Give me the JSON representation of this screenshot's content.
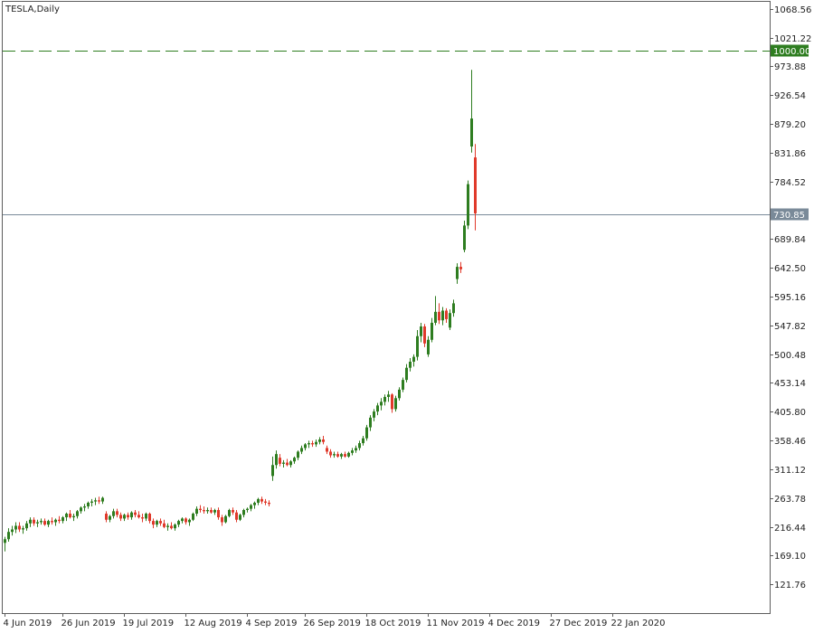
{
  "chart_data": {
    "type": "candlestick",
    "title": "TESLA,Daily",
    "ylim": [
      74.42,
      1080
    ],
    "y_ticks": [
      1068.56,
      1021.22,
      973.88,
      926.54,
      879.2,
      831.86,
      784.52,
      689.84,
      642.5,
      595.16,
      547.82,
      500.48,
      453.14,
      405.8,
      358.46,
      311.12,
      263.78,
      216.44,
      169.1,
      121.76
    ],
    "x_tick_labels": [
      "4 Jun 2019",
      "26 Jun 2019",
      "19 Jul 2019",
      "12 Aug 2019",
      "4 Sep 2019",
      "26 Sep 2019",
      "18 Oct 2019",
      "11 Nov 2019",
      "4 Dec 2019",
      "27 Dec 2019",
      "22 Jan 2020"
    ],
    "x_tick_indices": [
      0,
      16,
      33,
      50,
      67,
      83,
      100,
      117,
      134,
      151,
      168
    ],
    "colors": {
      "up": "#2e7d20",
      "down": "#e0392b",
      "wick": "#333333"
    },
    "levels": [
      {
        "label": "1000.00",
        "value": 1000.0,
        "style": "dashed",
        "color": "#2e7d20"
      },
      {
        "label": "730.85",
        "value": 730.85,
        "style": "solid",
        "color": "#7a8a99"
      }
    ],
    "candles": [
      {
        "o": 190,
        "h": 200,
        "l": 176,
        "c": 196
      },
      {
        "o": 196,
        "h": 214,
        "l": 192,
        "c": 208
      },
      {
        "o": 208,
        "h": 218,
        "l": 202,
        "c": 212
      },
      {
        "o": 212,
        "h": 224,
        "l": 206,
        "c": 218
      },
      {
        "o": 218,
        "h": 224,
        "l": 208,
        "c": 212
      },
      {
        "o": 212,
        "h": 218,
        "l": 205,
        "c": 214
      },
      {
        "o": 214,
        "h": 226,
        "l": 210,
        "c": 222
      },
      {
        "o": 222,
        "h": 232,
        "l": 216,
        "c": 228
      },
      {
        "o": 228,
        "h": 232,
        "l": 218,
        "c": 222
      },
      {
        "o": 222,
        "h": 228,
        "l": 216,
        "c": 224
      },
      {
        "o": 224,
        "h": 230,
        "l": 220,
        "c": 226
      },
      {
        "o": 226,
        "h": 230,
        "l": 218,
        "c": 220
      },
      {
        "o": 220,
        "h": 228,
        "l": 216,
        "c": 226
      },
      {
        "o": 226,
        "h": 232,
        "l": 220,
        "c": 224
      },
      {
        "o": 224,
        "h": 230,
        "l": 218,
        "c": 228
      },
      {
        "o": 228,
        "h": 234,
        "l": 222,
        "c": 226
      },
      {
        "o": 226,
        "h": 234,
        "l": 222,
        "c": 232
      },
      {
        "o": 232,
        "h": 240,
        "l": 226,
        "c": 238
      },
      {
        "o": 238,
        "h": 244,
        "l": 230,
        "c": 232
      },
      {
        "o": 232,
        "h": 238,
        "l": 226,
        "c": 234
      },
      {
        "o": 234,
        "h": 244,
        "l": 230,
        "c": 242
      },
      {
        "o": 242,
        "h": 250,
        "l": 238,
        "c": 248
      },
      {
        "o": 248,
        "h": 254,
        "l": 242,
        "c": 250
      },
      {
        "o": 250,
        "h": 258,
        "l": 246,
        "c": 256
      },
      {
        "o": 256,
        "h": 262,
        "l": 250,
        "c": 258
      },
      {
        "o": 258,
        "h": 264,
        "l": 252,
        "c": 260
      },
      {
        "o": 260,
        "h": 266,
        "l": 254,
        "c": 258
      },
      {
        "o": 258,
        "h": 266,
        "l": 254,
        "c": 264
      },
      {
        "o": 238,
        "h": 242,
        "l": 224,
        "c": 228
      },
      {
        "o": 228,
        "h": 236,
        "l": 224,
        "c": 234
      },
      {
        "o": 234,
        "h": 246,
        "l": 230,
        "c": 242
      },
      {
        "o": 242,
        "h": 246,
        "l": 232,
        "c": 236
      },
      {
        "o": 236,
        "h": 240,
        "l": 226,
        "c": 230
      },
      {
        "o": 230,
        "h": 238,
        "l": 226,
        "c": 236
      },
      {
        "o": 236,
        "h": 240,
        "l": 228,
        "c": 232
      },
      {
        "o": 232,
        "h": 242,
        "l": 228,
        "c": 240
      },
      {
        "o": 240,
        "h": 244,
        "l": 232,
        "c": 236
      },
      {
        "o": 236,
        "h": 242,
        "l": 230,
        "c": 232
      },
      {
        "o": 232,
        "h": 238,
        "l": 224,
        "c": 230
      },
      {
        "o": 230,
        "h": 240,
        "l": 226,
        "c": 238
      },
      {
        "o": 238,
        "h": 240,
        "l": 222,
        "c": 226
      },
      {
        "o": 226,
        "h": 230,
        "l": 214,
        "c": 220
      },
      {
        "o": 220,
        "h": 228,
        "l": 216,
        "c": 226
      },
      {
        "o": 226,
        "h": 230,
        "l": 218,
        "c": 222
      },
      {
        "o": 222,
        "h": 228,
        "l": 214,
        "c": 216
      },
      {
        "o": 216,
        "h": 222,
        "l": 210,
        "c": 218
      },
      {
        "o": 218,
        "h": 224,
        "l": 212,
        "c": 214
      },
      {
        "o": 214,
        "h": 222,
        "l": 210,
        "c": 220
      },
      {
        "o": 220,
        "h": 228,
        "l": 216,
        "c": 226
      },
      {
        "o": 226,
        "h": 232,
        "l": 222,
        "c": 230
      },
      {
        "o": 230,
        "h": 232,
        "l": 220,
        "c": 224
      },
      {
        "o": 224,
        "h": 230,
        "l": 218,
        "c": 228
      },
      {
        "o": 228,
        "h": 240,
        "l": 226,
        "c": 238
      },
      {
        "o": 238,
        "h": 250,
        "l": 234,
        "c": 246
      },
      {
        "o": 246,
        "h": 252,
        "l": 240,
        "c": 244
      },
      {
        "o": 244,
        "h": 250,
        "l": 238,
        "c": 242
      },
      {
        "o": 242,
        "h": 248,
        "l": 238,
        "c": 244
      },
      {
        "o": 244,
        "h": 248,
        "l": 238,
        "c": 240
      },
      {
        "o": 240,
        "h": 246,
        "l": 236,
        "c": 244
      },
      {
        "o": 244,
        "h": 248,
        "l": 228,
        "c": 232
      },
      {
        "o": 232,
        "h": 236,
        "l": 218,
        "c": 224
      },
      {
        "o": 224,
        "h": 236,
        "l": 222,
        "c": 234
      },
      {
        "o": 234,
        "h": 246,
        "l": 232,
        "c": 244
      },
      {
        "o": 244,
        "h": 248,
        "l": 236,
        "c": 240
      },
      {
        "o": 240,
        "h": 244,
        "l": 224,
        "c": 228
      },
      {
        "o": 228,
        "h": 238,
        "l": 226,
        "c": 236
      },
      {
        "o": 236,
        "h": 246,
        "l": 232,
        "c": 244
      },
      {
        "o": 244,
        "h": 248,
        "l": 240,
        "c": 246
      },
      {
        "o": 246,
        "h": 254,
        "l": 242,
        "c": 252
      },
      {
        "o": 252,
        "h": 258,
        "l": 246,
        "c": 256
      },
      {
        "o": 256,
        "h": 264,
        "l": 252,
        "c": 262
      },
      {
        "o": 262,
        "h": 266,
        "l": 254,
        "c": 258
      },
      {
        "o": 258,
        "h": 262,
        "l": 252,
        "c": 256
      },
      {
        "o": 256,
        "h": 260,
        "l": 250,
        "c": 254
      },
      {
        "o": 300,
        "h": 332,
        "l": 292,
        "c": 318
      },
      {
        "o": 318,
        "h": 342,
        "l": 312,
        "c": 336
      },
      {
        "o": 330,
        "h": 336,
        "l": 316,
        "c": 320
      },
      {
        "o": 320,
        "h": 326,
        "l": 314,
        "c": 322
      },
      {
        "o": 322,
        "h": 328,
        "l": 316,
        "c": 318
      },
      {
        "o": 318,
        "h": 326,
        "l": 314,
        "c": 324
      },
      {
        "o": 324,
        "h": 332,
        "l": 320,
        "c": 330
      },
      {
        "o": 330,
        "h": 342,
        "l": 326,
        "c": 340
      },
      {
        "o": 340,
        "h": 350,
        "l": 336,
        "c": 346
      },
      {
        "o": 346,
        "h": 354,
        "l": 342,
        "c": 352
      },
      {
        "o": 352,
        "h": 358,
        "l": 346,
        "c": 354
      },
      {
        "o": 354,
        "h": 358,
        "l": 348,
        "c": 352
      },
      {
        "o": 352,
        "h": 360,
        "l": 348,
        "c": 356
      },
      {
        "o": 356,
        "h": 364,
        "l": 352,
        "c": 360
      },
      {
        "o": 360,
        "h": 366,
        "l": 352,
        "c": 356
      },
      {
        "o": 346,
        "h": 350,
        "l": 336,
        "c": 340
      },
      {
        "o": 340,
        "h": 344,
        "l": 330,
        "c": 334
      },
      {
        "o": 334,
        "h": 340,
        "l": 330,
        "c": 336
      },
      {
        "o": 336,
        "h": 340,
        "l": 330,
        "c": 332
      },
      {
        "o": 332,
        "h": 338,
        "l": 328,
        "c": 336
      },
      {
        "o": 336,
        "h": 340,
        "l": 330,
        "c": 332
      },
      {
        "o": 332,
        "h": 340,
        "l": 330,
        "c": 338
      },
      {
        "o": 338,
        "h": 346,
        "l": 334,
        "c": 342
      },
      {
        "o": 342,
        "h": 350,
        "l": 338,
        "c": 346
      },
      {
        "o": 346,
        "h": 358,
        "l": 342,
        "c": 354
      },
      {
        "o": 354,
        "h": 366,
        "l": 350,
        "c": 362
      },
      {
        "o": 362,
        "h": 384,
        "l": 358,
        "c": 380
      },
      {
        "o": 380,
        "h": 400,
        "l": 374,
        "c": 396
      },
      {
        "o": 396,
        "h": 410,
        "l": 390,
        "c": 406
      },
      {
        "o": 406,
        "h": 420,
        "l": 400,
        "c": 416
      },
      {
        "o": 416,
        "h": 428,
        "l": 408,
        "c": 422
      },
      {
        "o": 422,
        "h": 434,
        "l": 416,
        "c": 430
      },
      {
        "o": 430,
        "h": 440,
        "l": 422,
        "c": 434
      },
      {
        "o": 434,
        "h": 436,
        "l": 404,
        "c": 410
      },
      {
        "o": 410,
        "h": 432,
        "l": 406,
        "c": 428
      },
      {
        "o": 428,
        "h": 446,
        "l": 424,
        "c": 442
      },
      {
        "o": 442,
        "h": 462,
        "l": 438,
        "c": 458
      },
      {
        "o": 458,
        "h": 484,
        "l": 454,
        "c": 478
      },
      {
        "o": 478,
        "h": 494,
        "l": 472,
        "c": 488
      },
      {
        "o": 488,
        "h": 500,
        "l": 480,
        "c": 496
      },
      {
        "o": 496,
        "h": 540,
        "l": 490,
        "c": 530
      },
      {
        "o": 530,
        "h": 552,
        "l": 520,
        "c": 546
      },
      {
        "o": 546,
        "h": 550,
        "l": 512,
        "c": 518
      },
      {
        "o": 500,
        "h": 530,
        "l": 496,
        "c": 524
      },
      {
        "o": 524,
        "h": 560,
        "l": 520,
        "c": 552
      },
      {
        "o": 552,
        "h": 596,
        "l": 548,
        "c": 570
      },
      {
        "o": 570,
        "h": 584,
        "l": 550,
        "c": 556
      },
      {
        "o": 556,
        "h": 578,
        "l": 548,
        "c": 572
      },
      {
        "o": 572,
        "h": 576,
        "l": 552,
        "c": 558
      },
      {
        "o": 544,
        "h": 574,
        "l": 540,
        "c": 568
      },
      {
        "o": 568,
        "h": 590,
        "l": 562,
        "c": 584
      },
      {
        "o": 624,
        "h": 650,
        "l": 616,
        "c": 644
      },
      {
        "o": 644,
        "h": 652,
        "l": 634,
        "c": 640
      },
      {
        "o": 672,
        "h": 720,
        "l": 668,
        "c": 712
      },
      {
        "o": 712,
        "h": 786,
        "l": 706,
        "c": 780
      },
      {
        "o": 842,
        "h": 968,
        "l": 832,
        "c": 888
      },
      {
        "o": 824,
        "h": 846,
        "l": 704,
        "c": 732
      }
    ]
  }
}
